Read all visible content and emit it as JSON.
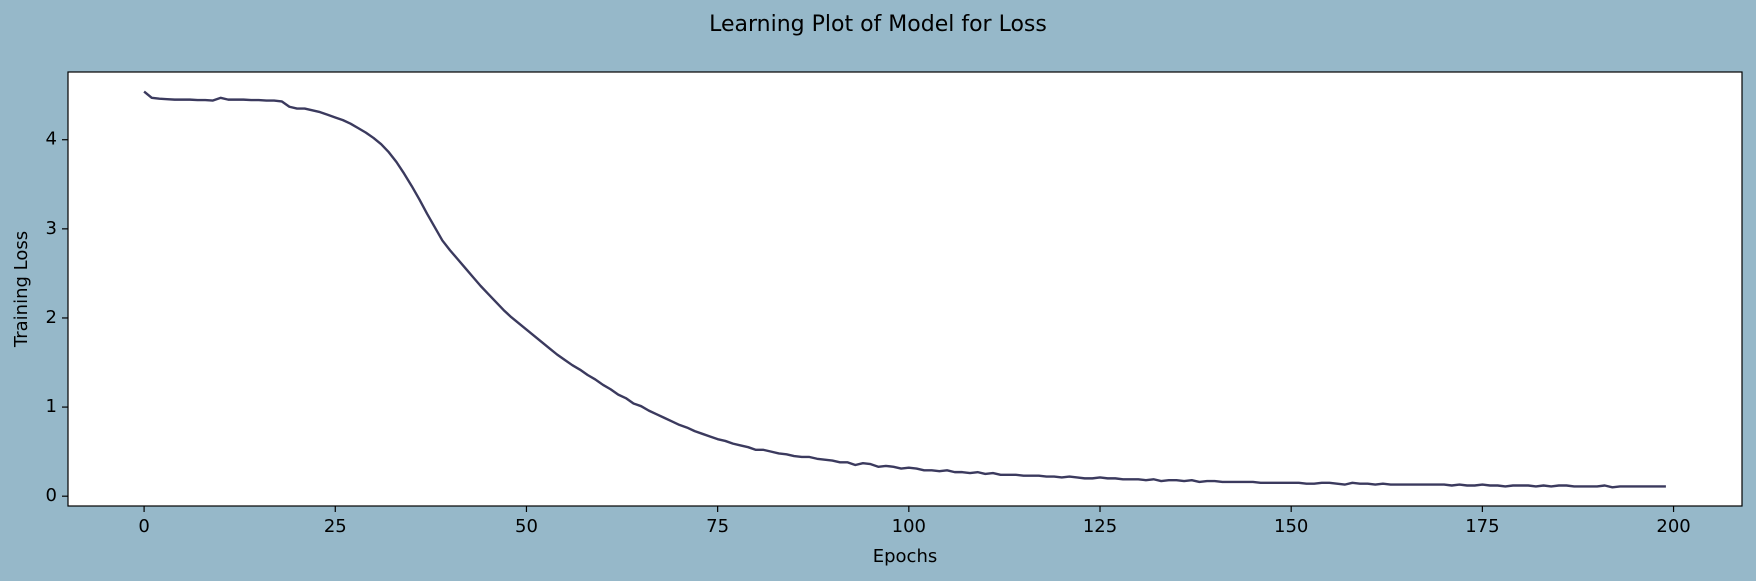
{
  "chart_data": {
    "type": "line",
    "title": "Learning Plot of Model for Loss",
    "x_label": "Epochs",
    "y_label": "Training Loss",
    "color": "#3b3a5e",
    "background": "#96b8c9",
    "x": [
      0,
      1,
      2,
      3,
      4,
      5,
      6,
      7,
      8,
      9,
      10,
      11,
      12,
      13,
      14,
      15,
      16,
      17,
      18,
      19,
      20,
      21,
      22,
      23,
      24,
      25,
      26,
      27,
      28,
      29,
      30,
      31,
      32,
      33,
      34,
      35,
      36,
      37,
      38,
      39,
      40,
      41,
      42,
      43,
      44,
      45,
      46,
      47,
      48,
      49,
      50,
      51,
      52,
      53,
      54,
      55,
      56,
      57,
      58,
      59,
      60,
      61,
      62,
      63,
      64,
      65,
      66,
      67,
      68,
      69,
      70,
      71,
      72,
      73,
      74,
      75,
      76,
      77,
      78,
      79,
      80,
      81,
      82,
      83,
      84,
      85,
      86,
      87,
      88,
      89,
      90,
      91,
      92,
      93,
      94,
      95,
      96,
      97,
      98,
      99,
      100,
      101,
      102,
      103,
      104,
      105,
      106,
      107,
      108,
      109,
      110,
      111,
      112,
      113,
      114,
      115,
      116,
      117,
      118,
      119,
      120,
      121,
      122,
      123,
      124,
      125,
      126,
      127,
      128,
      129,
      130,
      131,
      132,
      133,
      134,
      135,
      136,
      137,
      138,
      139,
      140,
      141,
      142,
      143,
      144,
      145,
      146,
      147,
      148,
      149,
      150,
      151,
      152,
      153,
      154,
      155,
      156,
      157,
      158,
      159,
      160,
      161,
      162,
      163,
      164,
      165,
      166,
      167,
      168,
      169,
      170,
      171,
      172,
      173,
      174,
      175,
      176,
      177,
      178,
      179,
      180,
      181,
      182,
      183,
      184,
      185,
      186,
      187,
      188,
      189,
      190,
      191,
      192,
      193,
      194,
      195,
      196,
      197,
      198,
      199
    ],
    "values": [
      4.54,
      4.47,
      4.46,
      4.455,
      4.45,
      4.45,
      4.45,
      4.445,
      4.445,
      4.44,
      4.47,
      4.45,
      4.45,
      4.45,
      4.445,
      4.445,
      4.44,
      4.44,
      4.43,
      4.37,
      4.35,
      4.35,
      4.33,
      4.31,
      4.28,
      4.25,
      4.22,
      4.18,
      4.13,
      4.08,
      4.02,
      3.95,
      3.86,
      3.75,
      3.62,
      3.48,
      3.33,
      3.17,
      3.02,
      2.87,
      2.76,
      2.66,
      2.56,
      2.46,
      2.36,
      2.27,
      2.18,
      2.09,
      2.01,
      1.94,
      1.87,
      1.8,
      1.73,
      1.66,
      1.59,
      1.53,
      1.47,
      1.42,
      1.36,
      1.31,
      1.25,
      1.2,
      1.14,
      1.1,
      1.04,
      1.01,
      0.96,
      0.92,
      0.88,
      0.84,
      0.8,
      0.77,
      0.73,
      0.7,
      0.67,
      0.64,
      0.62,
      0.59,
      0.57,
      0.55,
      0.52,
      0.52,
      0.5,
      0.48,
      0.47,
      0.45,
      0.44,
      0.44,
      0.42,
      0.41,
      0.4,
      0.38,
      0.38,
      0.35,
      0.37,
      0.36,
      0.33,
      0.34,
      0.33,
      0.31,
      0.32,
      0.31,
      0.29,
      0.29,
      0.28,
      0.29,
      0.27,
      0.27,
      0.26,
      0.27,
      0.25,
      0.26,
      0.24,
      0.24,
      0.24,
      0.23,
      0.23,
      0.23,
      0.22,
      0.22,
      0.21,
      0.22,
      0.21,
      0.2,
      0.2,
      0.21,
      0.2,
      0.2,
      0.19,
      0.19,
      0.19,
      0.18,
      0.19,
      0.17,
      0.18,
      0.18,
      0.17,
      0.18,
      0.16,
      0.17,
      0.17,
      0.16,
      0.16,
      0.16,
      0.16,
      0.16,
      0.15,
      0.15,
      0.15,
      0.15,
      0.15,
      0.15,
      0.14,
      0.14,
      0.15,
      0.15,
      0.14,
      0.13,
      0.15,
      0.14,
      0.14,
      0.13,
      0.14,
      0.13,
      0.13,
      0.13,
      0.13,
      0.13,
      0.13,
      0.13,
      0.13,
      0.12,
      0.13,
      0.12,
      0.12,
      0.13,
      0.12,
      0.12,
      0.11,
      0.12,
      0.12,
      0.12,
      0.11,
      0.12,
      0.11,
      0.12,
      0.12,
      0.11,
      0.11,
      0.11,
      0.11,
      0.12,
      0.1,
      0.11,
      0.11,
      0.11,
      0.11,
      0.11,
      0.11,
      0.11
    ],
    "xlim": [
      -9.95,
      208.95
    ],
    "ylim": [
      -0.11,
      4.76
    ],
    "xticks": [
      0,
      25,
      50,
      75,
      100,
      125,
      150,
      175,
      200
    ],
    "yticks": [
      0,
      1,
      2,
      3,
      4
    ]
  }
}
